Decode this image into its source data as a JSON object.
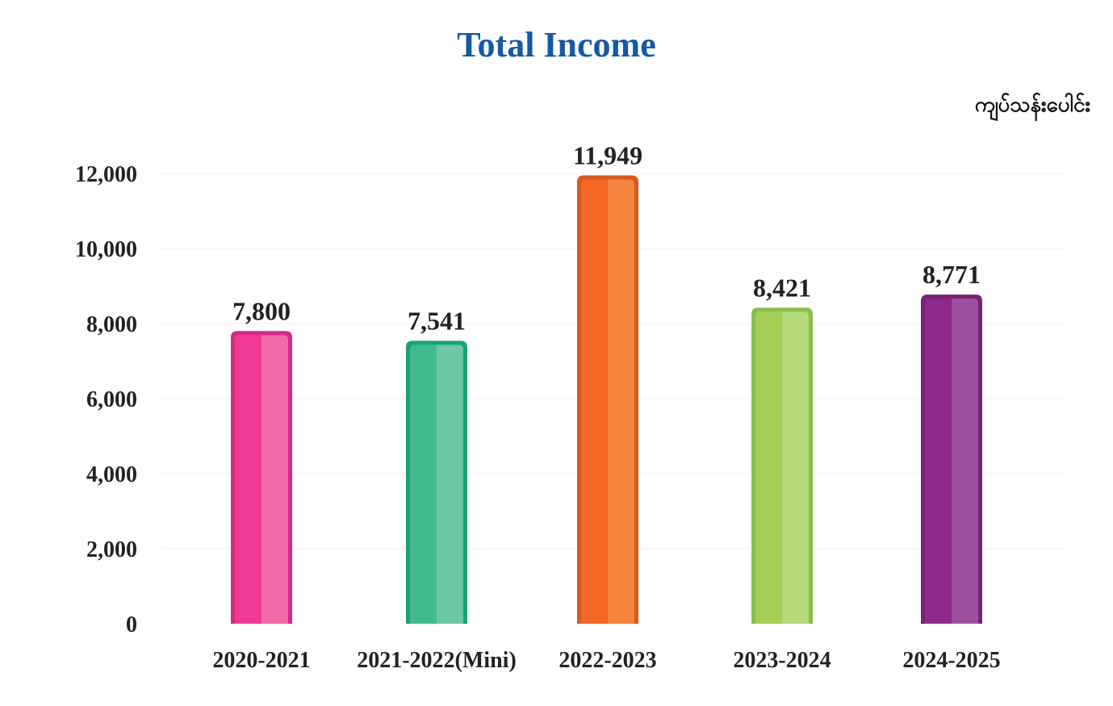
{
  "chart_data": {
    "type": "bar",
    "title": "Total Income",
    "unit": "ကျပ်သန်းပေါင်း",
    "categories": [
      "2020-2021",
      "2021-2022(Mini)",
      "2022-2023",
      "2023-2024",
      "2024-2025"
    ],
    "values": [
      7800,
      7541,
      11949,
      8421,
      8771
    ],
    "value_labels": [
      "7,800",
      "7,541",
      "11,949",
      "8,421",
      "8,771"
    ],
    "yticks": [
      0,
      2000,
      4000,
      6000,
      8000,
      10000,
      12000
    ],
    "ytick_labels": [
      "0",
      "2,000",
      "4,000",
      "6,000",
      "8,000",
      "10,000",
      "12,000"
    ],
    "ylim": [
      0,
      12000
    ],
    "grid": true,
    "legend": "none",
    "bar_colors": [
      {
        "left": "#ee3a96",
        "right": "#f06aa8",
        "edge": "#d42c84"
      },
      {
        "left": "#41bb8e",
        "right": "#6ec5a1",
        "edge": "#17a278"
      },
      {
        "left": "#f26724",
        "right": "#f5843f",
        "edge": "#d85a20"
      },
      {
        "left": "#a4ce55",
        "right": "#b6d97c",
        "edge": "#86c04a"
      },
      {
        "left": "#8e2a8b",
        "right": "#9b4f9c",
        "edge": "#76246f"
      }
    ],
    "title_color": "#1458a6"
  }
}
